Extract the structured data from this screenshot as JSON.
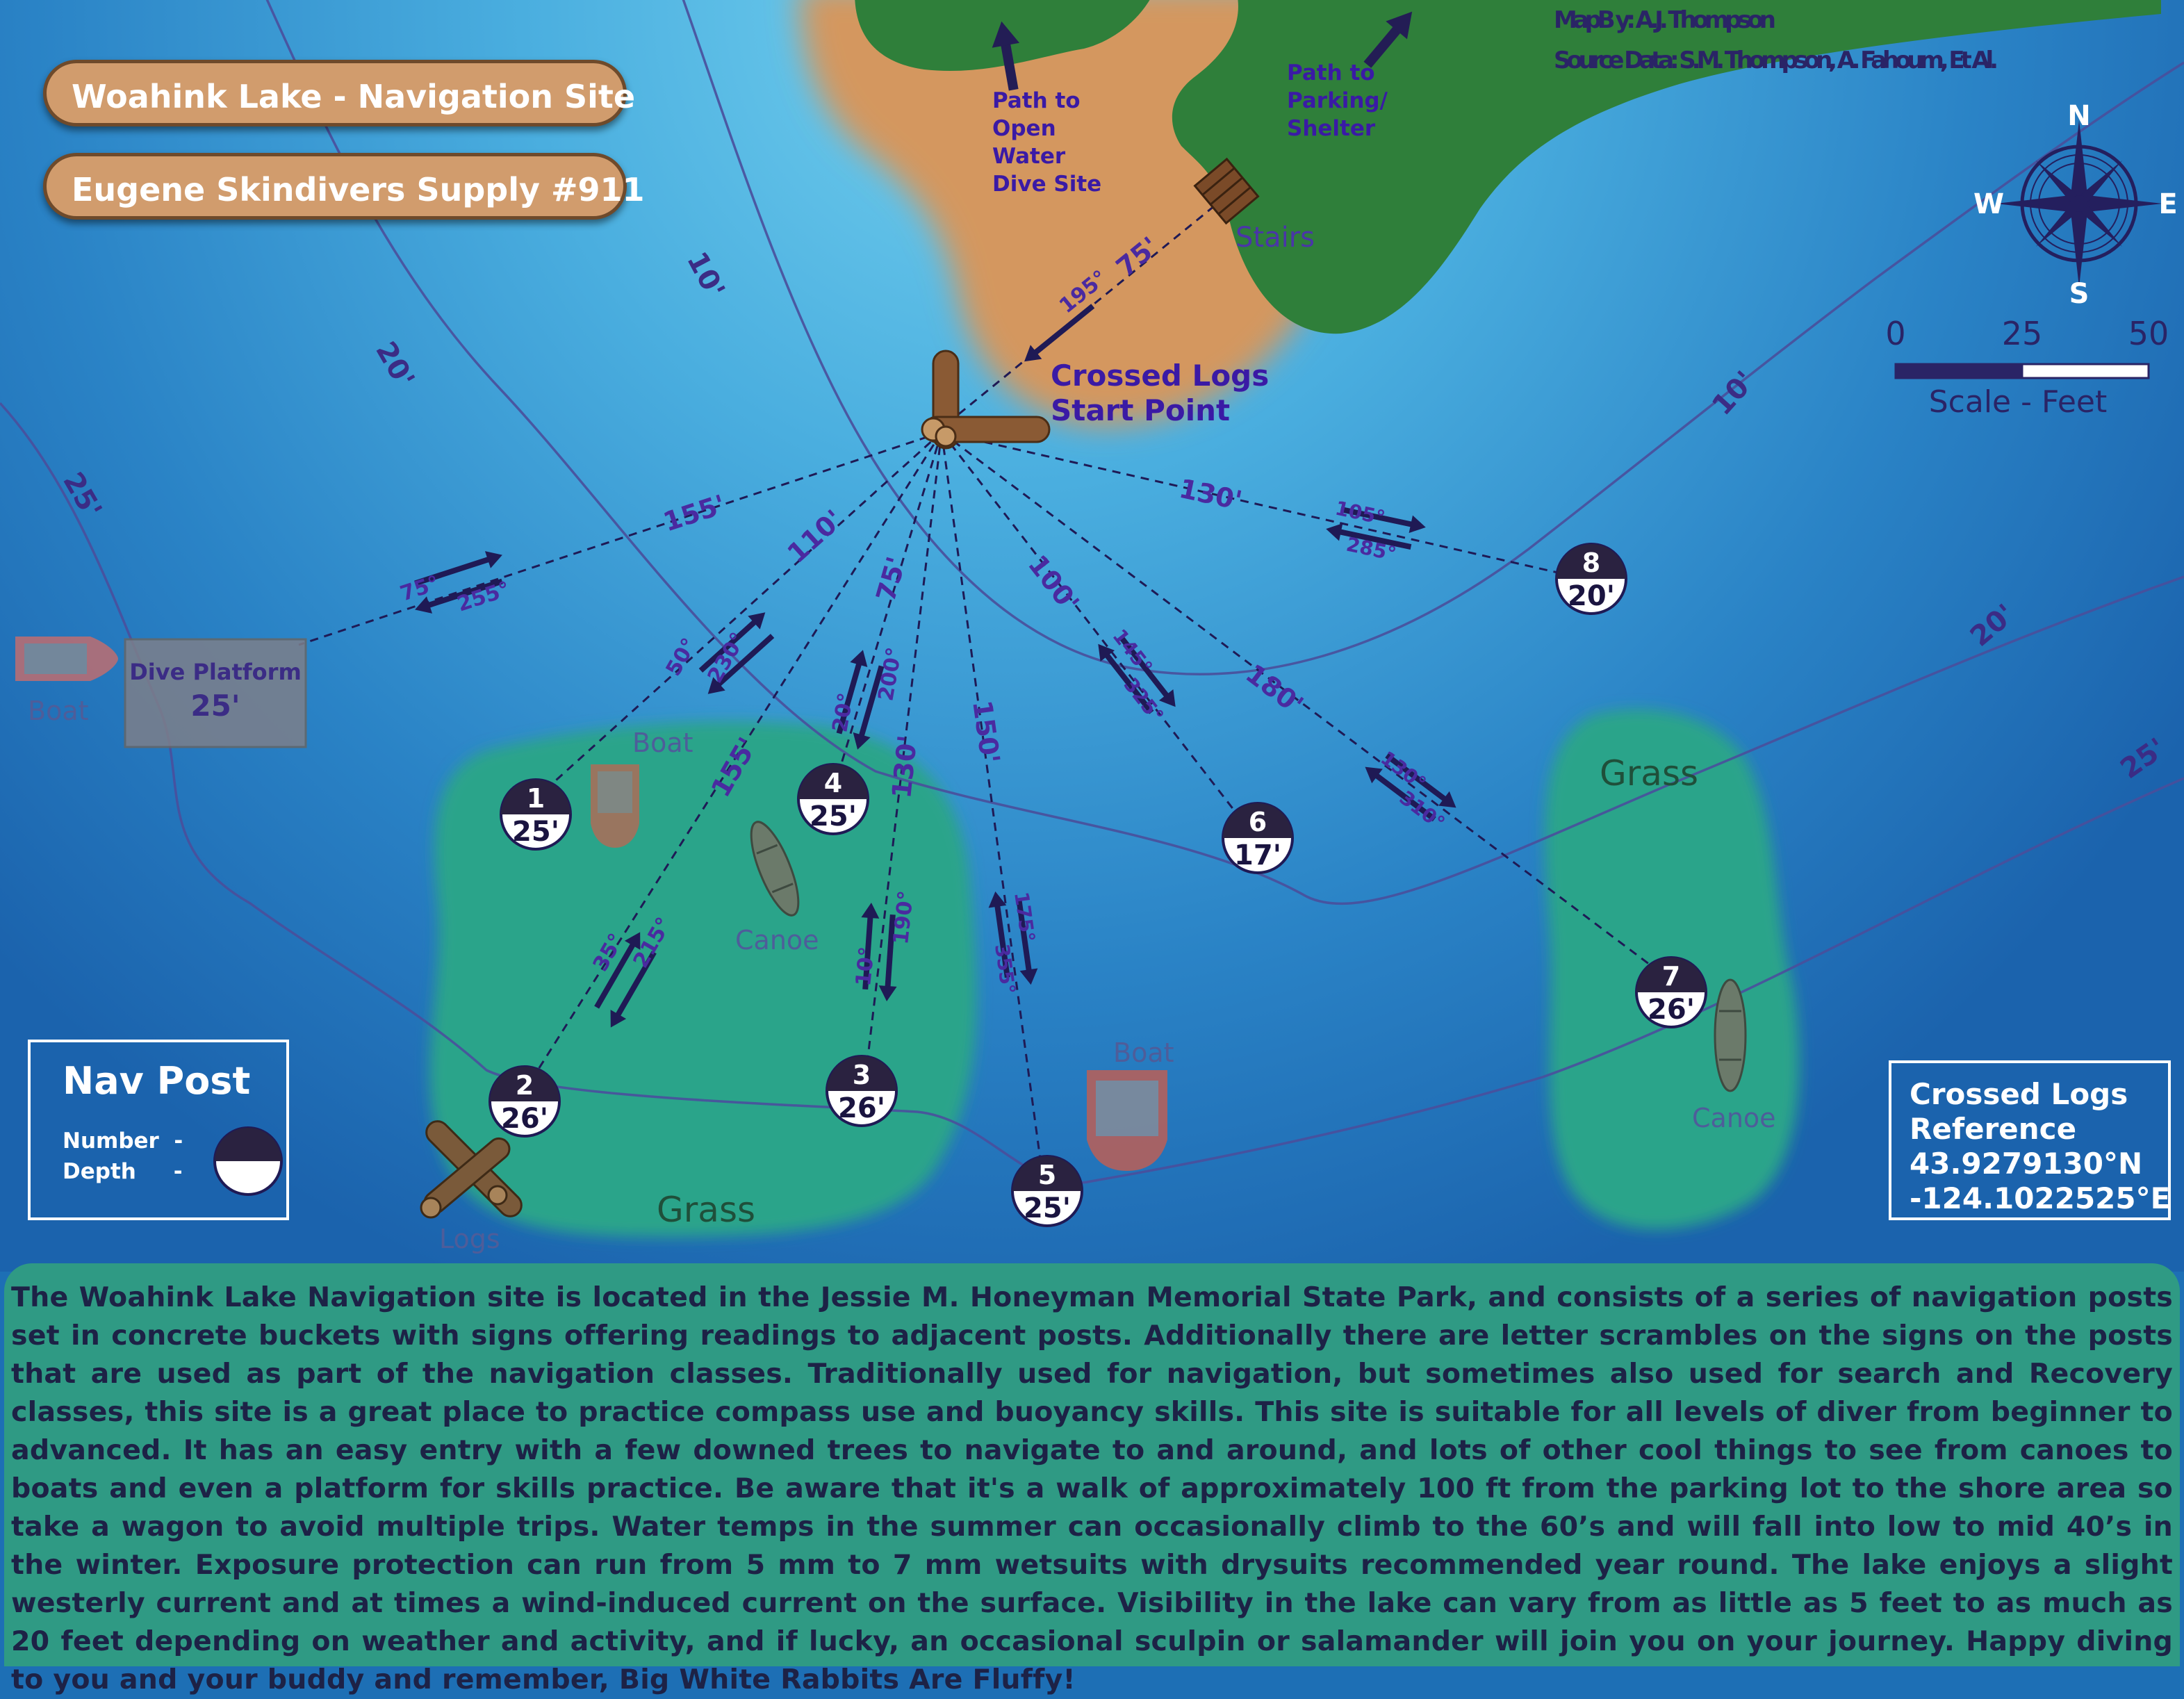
{
  "titles": {
    "site": "Woahink Lake - Navigation Site",
    "shop": "Eugene Skindivers Supply #911"
  },
  "credits": {
    "map_by": "MapB y: A.J. Thompson",
    "source": "Source Data: S.M. Thompson, A. Fahoum, Et Al."
  },
  "paths": {
    "open_water": [
      "Path to",
      "Open",
      "Water",
      "Dive Site"
    ],
    "parking": [
      "Path to",
      "Parking/",
      "Shelter"
    ]
  },
  "landmarks": {
    "stairs": "Stairs",
    "start_line1": "Crossed Logs",
    "start_line2": "Start Point",
    "platform_title": "Dive Platform",
    "platform_depth": "25'",
    "boat": "Boat",
    "canoe": "Canoe",
    "grass": "Grass",
    "logs": "Logs"
  },
  "compass": {
    "n": "N",
    "s": "S",
    "e": "E",
    "w": "W"
  },
  "scale": {
    "t0": "0",
    "t25": "25",
    "t50": "50",
    "label": "Scale - Feet"
  },
  "contours": [
    "10'",
    "20'",
    "25'"
  ],
  "nav_posts": [
    {
      "number": "1",
      "depth": "25'"
    },
    {
      "number": "2",
      "depth": "26'"
    },
    {
      "number": "3",
      "depth": "26'"
    },
    {
      "number": "4",
      "depth": "25'"
    },
    {
      "number": "5",
      "depth": "25'"
    },
    {
      "number": "6",
      "depth": "17'"
    },
    {
      "number": "7",
      "depth": "26'"
    },
    {
      "number": "8",
      "depth": "20'"
    }
  ],
  "routes": {
    "stairs_leg": {
      "distance": "75'",
      "bearing": "195°"
    },
    "platform": {
      "distance": "155'",
      "out": "75°",
      "back": "255°"
    },
    "p1": {
      "distance": "110'",
      "out": "50°",
      "back": "230°"
    },
    "p2": {
      "distance": "155'"
    },
    "p2_p1": {
      "out": "35°",
      "back": "215°"
    },
    "p4": {
      "distance": "75'",
      "out": "20°",
      "back": "200°"
    },
    "p3": {
      "distance": "130'"
    },
    "p3_p4": {
      "out": "10°",
      "back": "190°"
    },
    "p5": {
      "distance": "150'",
      "out": "175°",
      "back": "355°"
    },
    "p6": {
      "distance": "100'",
      "out": "145°",
      "back": "325°"
    },
    "p7": {
      "distance": "180'",
      "out": "130°",
      "back": "310°"
    },
    "p8": {
      "distance": "130'",
      "out": "105°",
      "back": "285°"
    }
  },
  "legend": {
    "title": "Nav Post",
    "number": "Number  -",
    "depth": "Depth     -"
  },
  "reference": {
    "line1": "Crossed Logs",
    "line2": "Reference",
    "lat": "43.9279130°N",
    "lon": "-124.1022525°E"
  },
  "description": "The Woahink Lake Navigation site is located in the Jessie M. Honeyman Memorial State Park, and consists of a series of navigation posts set in concrete buckets with signs offering readings to adjacent posts. Additionally there are letter scrambles on the signs on the posts that are used as part of the navigation classes. Traditionally used for navigation, but sometimes also used for search and Recovery classes, this site is a great place to practice compass use and buoyancy skills. This site is suitable for all levels of diver from beginner to advanced. It has an easy entry with a few downed trees to navigate to and around, and lots of other cool things to see from canoes to boats and even a platform for skills practice. Be aware that it's a walk of approximately 100 ft from the parking lot to the shore area so take a wagon to avoid multiple trips. Water temps in the summer can occasionally climb to the 60’s and will fall into low to mid 40’s in the winter. Exposure protection can run from 5 mm to 7 mm wetsuits with drysuits recommended year round. The lake enjoys a slight westerly current and at times a wind-induced current on the surface. Visibility in the lake can vary from as little as 5 feet to as much as 20 feet depending on weather and activity, and if lucky, an occasional sculpin or salamander will join you on your journey. Happy diving to you and your buddy and remember, Big White Rabbits Are Fluffy!",
  "colors": {
    "water_light": "#5cc0e8",
    "water_deep": "#1e6bb3",
    "sand": "#d4975f",
    "land": "#2f7f3a",
    "grass": "#2aa48a",
    "route": "#2a2466",
    "label": "#46258c"
  }
}
